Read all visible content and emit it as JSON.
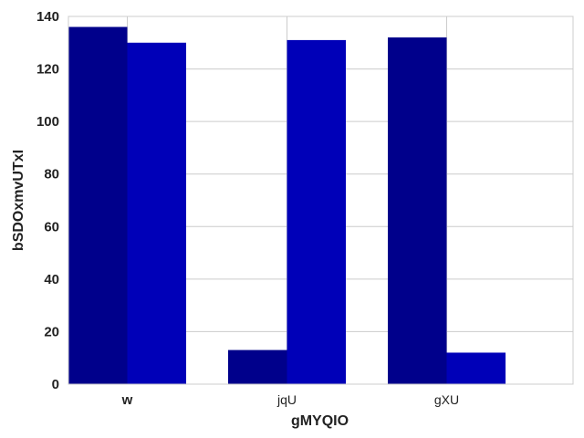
{
  "chart_data": {
    "type": "bar",
    "title": "",
    "xlabel": "gMYQIO",
    "ylabel": "bSDOxmvUTxI",
    "categories": [
      "w",
      "jqU",
      "gXU"
    ],
    "category_label_bold": [
      true,
      false,
      false
    ],
    "series": [
      {
        "values": [
          136,
          13,
          132
        ],
        "color": "#00008b"
      },
      {
        "values": [
          130,
          131,
          12
        ],
        "color": "#0000b8"
      }
    ],
    "ylim": [
      0,
      140
    ],
    "yticks": [
      0,
      20,
      40,
      60,
      80,
      100,
      120,
      140
    ],
    "grid": true
  }
}
